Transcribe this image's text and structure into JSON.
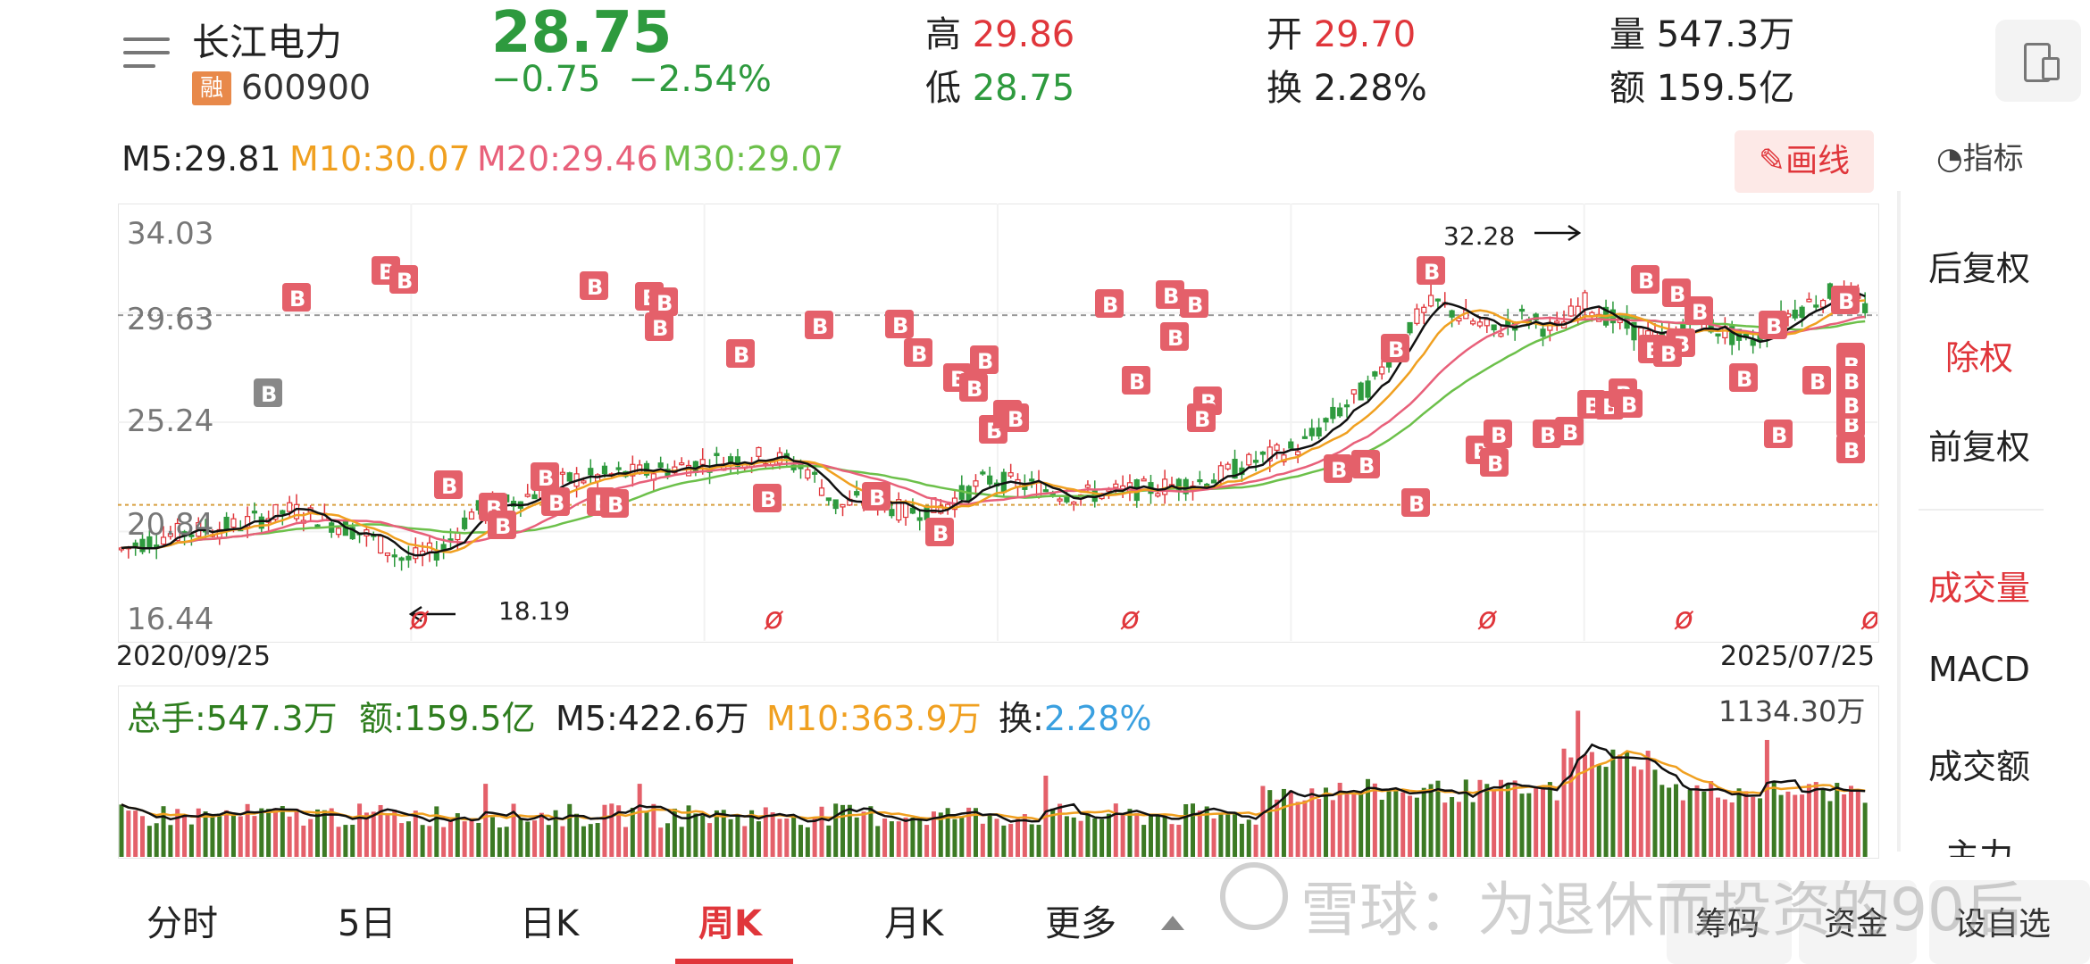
{
  "header": {
    "name": "长江电力",
    "margin_badge": "融",
    "code": "600900",
    "price": "28.75",
    "change": "−0.75",
    "change_pct": "−2.54%",
    "high_label": "高",
    "high": "29.86",
    "low_label": "低",
    "low": "28.75",
    "open_label": "开",
    "open": "29.70",
    "turnover_label": "换",
    "turnover": "2.28%",
    "volume_label": "量",
    "volume": "547.3万",
    "amount_label": "额",
    "amount": "159.5亿"
  },
  "ma": {
    "m5": "M5:29.81",
    "m10": "M10:30.07",
    "m20": "M20:29.46",
    "m30": "M30:29.07",
    "draw_label": "画线",
    "indicator_label": "指标"
  },
  "colors": {
    "up": "#e0363b",
    "down": "#2e9a3e",
    "m10": "#f0a020",
    "m20": "#e8607a",
    "m30": "#6cc04a",
    "turnover": "#3aa0e0"
  },
  "chart": {
    "y_labels": [
      "34.03",
      "29.63",
      "25.24",
      "20.84",
      "16.44"
    ],
    "start_date": "2020/09/25",
    "end_date": "2025/07/25",
    "high_marker": "32.28",
    "low_marker": "18.19",
    "buy_marker": "B",
    "dividend_marker": "ø"
  },
  "volume": {
    "total": "总手:547.3万",
    "amount": "额:159.5亿",
    "m5": "M5:422.6万",
    "m10": "M10:363.9万",
    "turnover_label": "换:",
    "turnover_value": "2.28%",
    "max": "1134.30万"
  },
  "side_panel": {
    "items": [
      "后复权",
      "除权",
      "前复权",
      "成交量",
      "MACD",
      "成交额",
      "主力"
    ]
  },
  "tabs": [
    "分时",
    "5日",
    "日K",
    "周K",
    "月K",
    "更多"
  ],
  "active_tab": "周K",
  "bottom_right": [
    "筹码",
    "资金",
    "设自选"
  ],
  "watermark": "雪球：为退休而投资的90后"
}
